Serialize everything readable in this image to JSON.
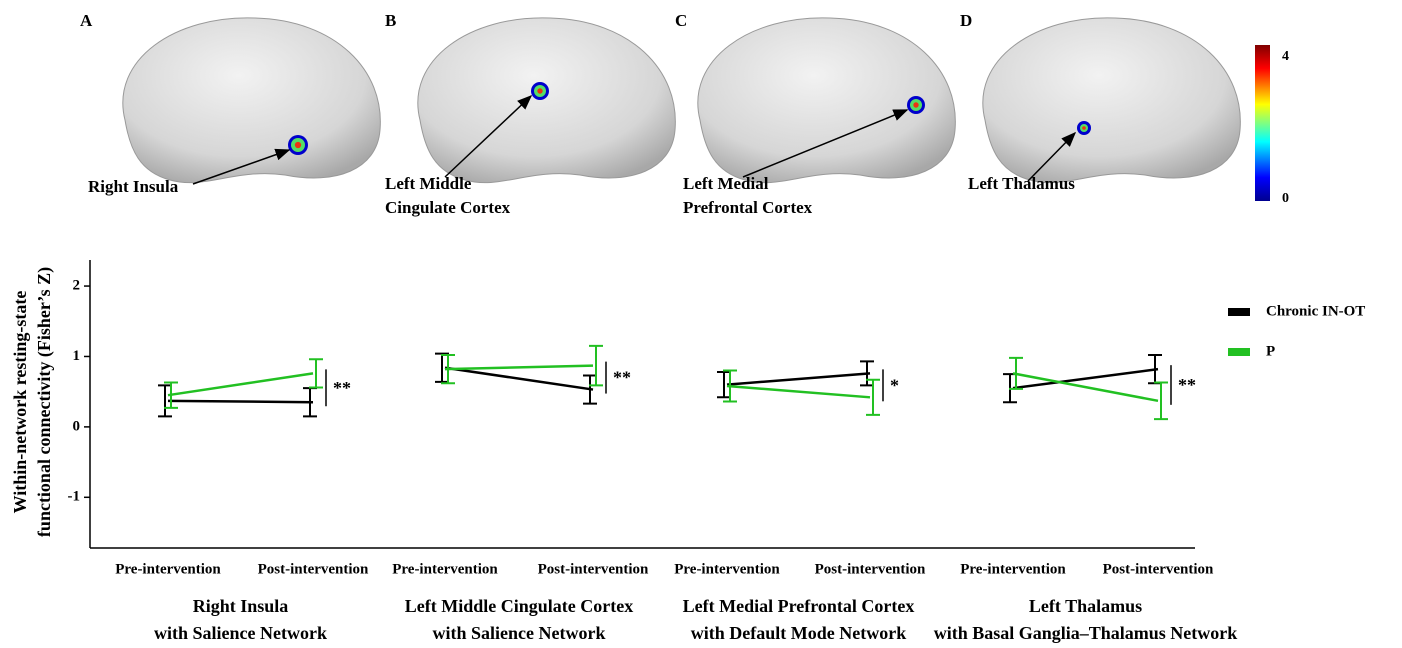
{
  "brain_panels": [
    {
      "letter": "A",
      "label": [
        "Right Insula"
      ]
    },
    {
      "letter": "B",
      "label": [
        "Left Middle",
        "Cingulate Cortex"
      ]
    },
    {
      "letter": "C",
      "label": [
        "Left Medial",
        "Prefrontal Cortex"
      ]
    },
    {
      "letter": "D",
      "label": [
        "Left Thalamus"
      ]
    }
  ],
  "colorbar": {
    "ticks": [
      0,
      4
    ]
  },
  "chart_data": {
    "type": "line",
    "ylabel": [
      "Within-network resting-state",
      "functional connectivity (Fisher’s Z)"
    ],
    "ylim": [
      -1.72,
      2.37
    ],
    "yticks": [
      -1,
      0,
      1,
      2
    ],
    "legend": [
      {
        "name": "Chronic IN-OT",
        "color": "#000000"
      },
      {
        "name": "P",
        "color": "#22c022"
      }
    ],
    "groups": [
      {
        "title": [
          "Right Insula",
          "with Salience Network"
        ],
        "categories": [
          "Pre-intervention",
          "Post-intervention"
        ],
        "significance": "**",
        "series": [
          {
            "values": [
              0.37,
              0.35
            ],
            "errors": [
              0.22,
              0.2
            ]
          },
          {
            "values": [
              0.45,
              0.76
            ],
            "errors": [
              0.18,
              0.2
            ]
          }
        ]
      },
      {
        "title": [
          "Left Middle Cingulate Cortex",
          "with Salience Network"
        ],
        "categories": [
          "Pre-intervention",
          "Post-intervention"
        ],
        "significance": "**",
        "series": [
          {
            "values": [
              0.84,
              0.53
            ],
            "errors": [
              0.2,
              0.2
            ]
          },
          {
            "values": [
              0.82,
              0.87
            ],
            "errors": [
              0.2,
              0.28
            ]
          }
        ]
      },
      {
        "title": [
          "Left Medial Prefrontal Cortex",
          "with Default Mode Network"
        ],
        "categories": [
          "Pre-intervention",
          "Post-intervention"
        ],
        "significance": "*",
        "series": [
          {
            "values": [
              0.6,
              0.76
            ],
            "errors": [
              0.18,
              0.17
            ]
          },
          {
            "values": [
              0.58,
              0.42
            ],
            "errors": [
              0.22,
              0.25
            ]
          }
        ]
      },
      {
        "title": [
          "Left Thalamus",
          "with Basal Ganglia–Thalamus Network"
        ],
        "categories": [
          "Pre-intervention",
          "Post-intervention"
        ],
        "significance": "**",
        "series": [
          {
            "values": [
              0.55,
              0.82
            ],
            "errors": [
              0.2,
              0.2
            ]
          },
          {
            "values": [
              0.76,
              0.37
            ],
            "errors": [
              0.22,
              0.26
            ]
          }
        ]
      }
    ]
  }
}
